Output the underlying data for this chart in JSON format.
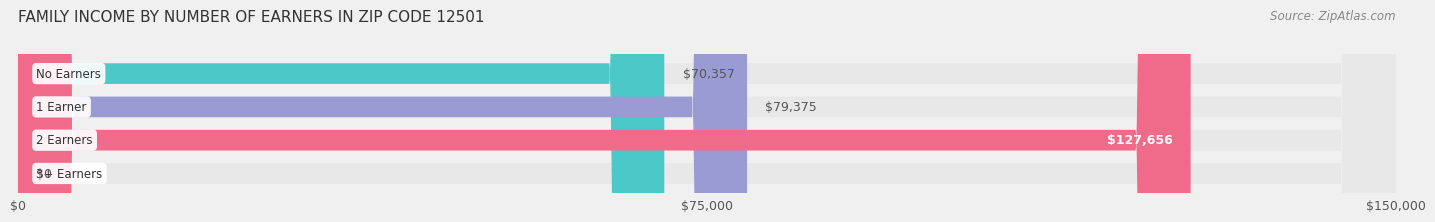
{
  "title": "FAMILY INCOME BY NUMBER OF EARNERS IN ZIP CODE 12501",
  "source": "Source: ZipAtlas.com",
  "categories": [
    "No Earners",
    "1 Earner",
    "2 Earners",
    "3+ Earners"
  ],
  "values": [
    70357,
    79375,
    127656,
    0
  ],
  "bar_colors": [
    "#4dc8c8",
    "#9b9bd4",
    "#f06b8a",
    "#f5c89a"
  ],
  "bar_labels": [
    "$70,357",
    "$79,375",
    "$127,656",
    "$0"
  ],
  "label_colors": [
    "#555555",
    "#555555",
    "#ffffff",
    "#555555"
  ],
  "xlim": [
    0,
    150000
  ],
  "xticks": [
    0,
    75000,
    150000
  ],
  "xticklabels": [
    "$0",
    "$75,000",
    "$150,000"
  ],
  "background_color": "#f0f0f0",
  "bar_bg_color": "#e8e8e8",
  "title_fontsize": 11,
  "source_fontsize": 8.5,
  "label_fontsize": 9,
  "category_fontsize": 8.5
}
